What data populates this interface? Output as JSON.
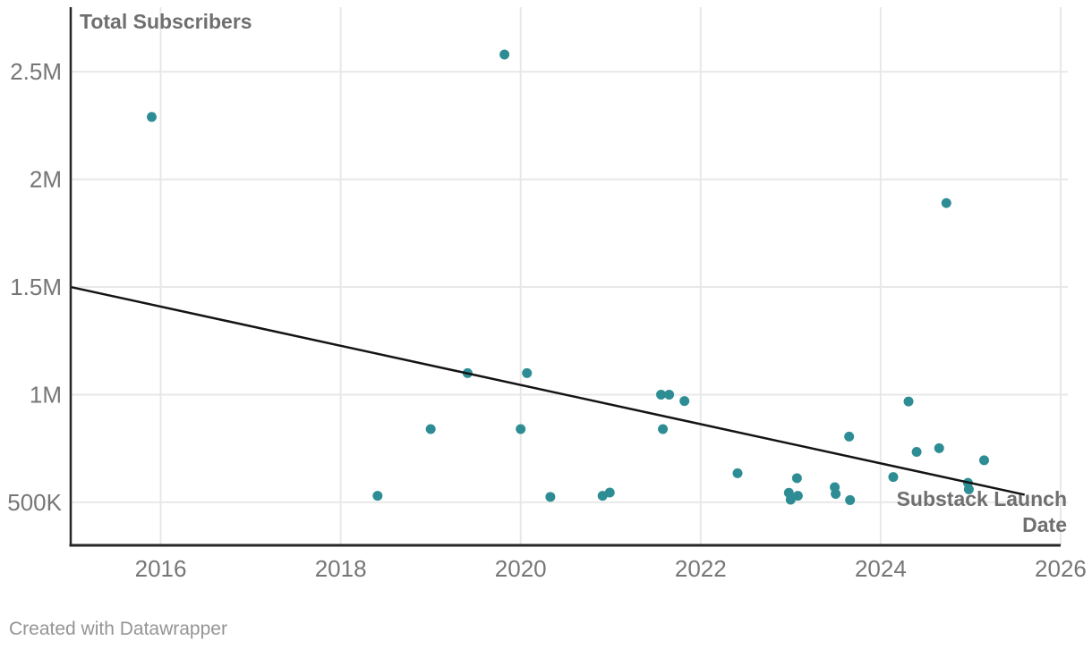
{
  "chart_data": {
    "type": "scatter",
    "title": "",
    "ylabel": "Total Subscribers",
    "xlabel": "Substack Launch Date",
    "xlabel_lines": [
      "Substack Launch",
      "Date"
    ],
    "xlim": [
      2015.0,
      2026.08
    ],
    "ylim": [
      300000,
      2800000
    ],
    "grid": true,
    "legend": false,
    "x_ticks": [
      {
        "value": 2016,
        "label": "2016"
      },
      {
        "value": 2018,
        "label": "2018"
      },
      {
        "value": 2020,
        "label": "2020"
      },
      {
        "value": 2022,
        "label": "2022"
      },
      {
        "value": 2024,
        "label": "2024"
      },
      {
        "value": 2026,
        "label": "2026"
      }
    ],
    "y_ticks": [
      {
        "value": 500000,
        "label": "500K"
      },
      {
        "value": 1000000,
        "label": "1M"
      },
      {
        "value": 1500000,
        "label": "1.5M"
      },
      {
        "value": 2000000,
        "label": "2M"
      },
      {
        "value": 2500000,
        "label": "2.5M"
      }
    ],
    "points": [
      [
        2015.9,
        2290000
      ],
      [
        2018.41,
        530000
      ],
      [
        2019.0,
        840000
      ],
      [
        2019.41,
        1100000
      ],
      [
        2019.82,
        2580000
      ],
      [
        2020.0,
        840000
      ],
      [
        2020.07,
        1100000
      ],
      [
        2020.33,
        525000
      ],
      [
        2020.91,
        530000
      ],
      [
        2020.99,
        545000
      ],
      [
        2021.56,
        1000000
      ],
      [
        2021.58,
        840000
      ],
      [
        2021.65,
        1000000
      ],
      [
        2021.82,
        970000
      ],
      [
        2022.41,
        635000
      ],
      [
        2022.98,
        544000
      ],
      [
        2023.0,
        512000
      ],
      [
        2023.07,
        612000
      ],
      [
        2023.08,
        530000
      ],
      [
        2023.49,
        570000
      ],
      [
        2023.5,
        539000
      ],
      [
        2023.65,
        805000
      ],
      [
        2023.66,
        510000
      ],
      [
        2024.14,
        617000
      ],
      [
        2024.31,
        968000
      ],
      [
        2024.4,
        734000
      ],
      [
        2024.65,
        751000
      ],
      [
        2024.73,
        1890000
      ],
      [
        2024.97,
        590000
      ],
      [
        2024.98,
        560000
      ],
      [
        2025.15,
        695000
      ]
    ],
    "trend_line": {
      "x1": 2015.0,
      "y1": 1500000,
      "x2": 2025.6,
      "y2": 535000
    },
    "colors": {
      "point": "#2e8d94",
      "trend": "#141414",
      "grid": "#e8e8e8",
      "axis": "#262626",
      "tick_text": "#767676",
      "axis_title_text": "#6f6f6f",
      "footer_text": "#949494"
    }
  },
  "footer": {
    "text": "Created with Datawrapper"
  }
}
